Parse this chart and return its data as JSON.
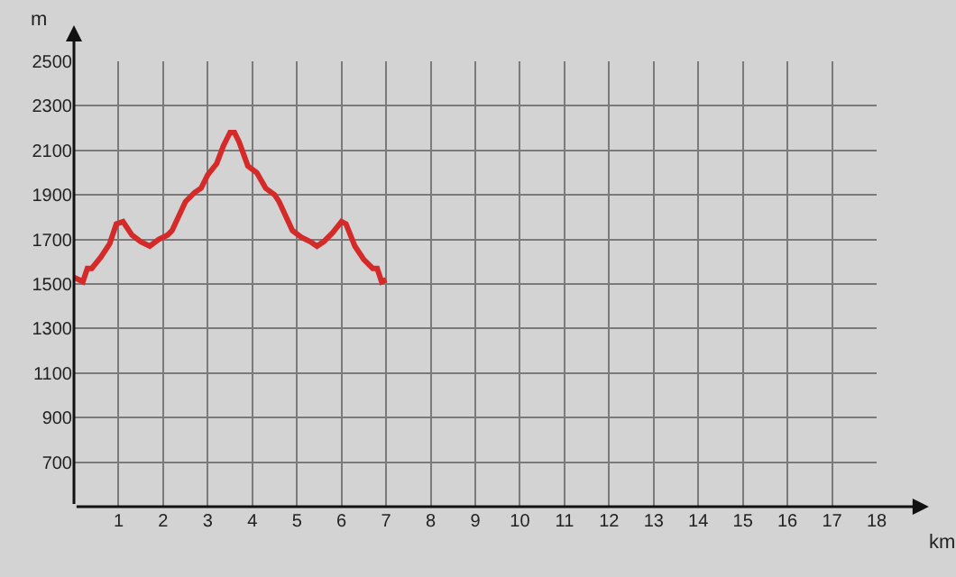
{
  "chart_data": {
    "type": "line",
    "xlabel": "km",
    "ylabel": "m",
    "x": [
      0,
      0.1,
      0.2,
      0.3,
      0.4,
      0.6,
      0.8,
      0.95,
      1.1,
      1.3,
      1.5,
      1.7,
      1.9,
      2.1,
      2.2,
      2.5,
      2.7,
      2.85,
      3.0,
      3.2,
      3.35,
      3.5,
      3.6,
      3.7,
      3.9,
      4.1,
      4.3,
      4.5,
      4.6,
      4.9,
      5.1,
      5.3,
      5.45,
      5.6,
      5.8,
      6.0,
      6.1,
      6.3,
      6.5,
      6.7,
      6.8,
      6.9,
      7.0
    ],
    "series": [
      {
        "color": "#d42a2a",
        "values": [
          1530,
          1520,
          1510,
          1570,
          1570,
          1620,
          1680,
          1770,
          1780,
          1720,
          1690,
          1670,
          1700,
          1720,
          1740,
          1870,
          1910,
          1930,
          1990,
          2040,
          2120,
          2180,
          2180,
          2140,
          2030,
          2000,
          1930,
          1900,
          1870,
          1740,
          1710,
          1690,
          1670,
          1690,
          1730,
          1780,
          1770,
          1670,
          1610,
          1570,
          1570,
          1510,
          1520
        ]
      }
    ],
    "xlim": [
      0,
      18
    ],
    "xticks": [
      1,
      2,
      3,
      4,
      5,
      6,
      7,
      8,
      9,
      10,
      11,
      12,
      13,
      14,
      15,
      16,
      17,
      18
    ],
    "ylim": [
      500,
      2500
    ],
    "yticks": [
      700,
      900,
      1100,
      1300,
      1500,
      1700,
      1900,
      2100,
      2300,
      2500
    ],
    "grid": true,
    "marker": "none",
    "line_style": "solid"
  }
}
